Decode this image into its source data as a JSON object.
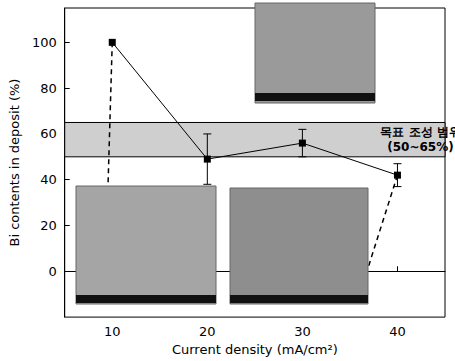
{
  "chart_data": {
    "type": "line",
    "x_label": "Current density (mA/cm²)",
    "y_label": "Bi contents in deposit (%)",
    "x": [
      10,
      20,
      30,
      40
    ],
    "values": [
      100,
      49,
      56,
      42
    ],
    "errors": [
      null,
      11,
      6,
      5
    ],
    "color": "#000000",
    "marker": "square",
    "xlim": [
      5,
      45
    ],
    "xticks": [
      10,
      20,
      30,
      40
    ],
    "ylim": [
      -20,
      115
    ],
    "yticks": [
      0,
      20,
      40,
      60,
      80,
      100
    ],
    "target_range": [
      50,
      65
    ],
    "annotation": [
      "목표 조성 범위",
      "(50~65%)"
    ],
    "grid": false
  }
}
